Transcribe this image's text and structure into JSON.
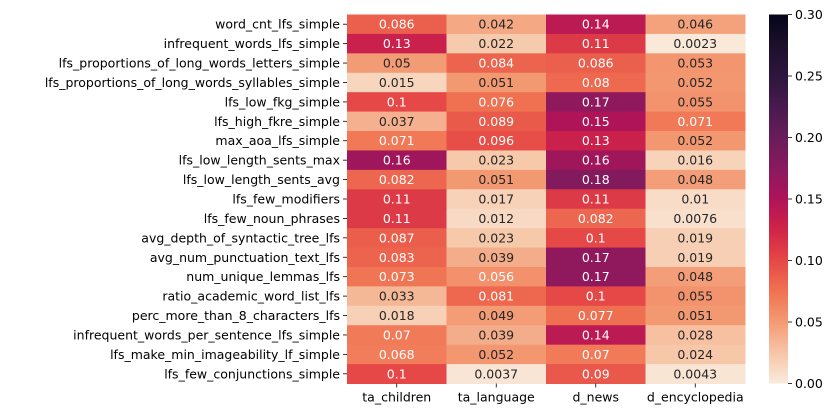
{
  "chart_data": {
    "type": "heatmap",
    "title": "",
    "xlabel": "",
    "ylabel": "",
    "columns": [
      "ta_children",
      "ta_language",
      "d_news",
      "d_encyclopedia"
    ],
    "rows": [
      "word_cnt_lfs_simple",
      "infrequent_words_lfs_simple",
      "lfs_proportions_of_long_words_letters_simple",
      "lfs_proportions_of_long_words_syllables_simple",
      "lfs_low_fkg_simple",
      "lfs_high_fkre_simple",
      "max_aoa_lfs_simple",
      "lfs_low_length_sents_max",
      "lfs_low_length_sents_avg",
      "lfs_few_modifiers",
      "lfs_few_noun_phrases",
      "avg_depth_of_syntactic_tree_lfs",
      "avg_num_punctuation_text_lfs",
      "num_unique_lemmas_lfs",
      "ratio_academic_word_list_lfs",
      "perc_more_than_8_characters_lfs",
      "infrequent_words_per_sentence_lfs_simple",
      "lfs_make_min_imageability_lf_simple",
      "lfs_few_conjunctions_simple"
    ],
    "values": [
      [
        0.086,
        0.042,
        0.14,
        0.046
      ],
      [
        0.13,
        0.022,
        0.11,
        0.0023
      ],
      [
        0.05,
        0.084,
        0.086,
        0.053
      ],
      [
        0.015,
        0.051,
        0.08,
        0.052
      ],
      [
        0.1,
        0.076,
        0.17,
        0.055
      ],
      [
        0.037,
        0.089,
        0.15,
        0.071
      ],
      [
        0.071,
        0.096,
        0.13,
        0.052
      ],
      [
        0.16,
        0.023,
        0.16,
        0.016
      ],
      [
        0.082,
        0.051,
        0.18,
        0.048
      ],
      [
        0.11,
        0.017,
        0.11,
        0.01
      ],
      [
        0.11,
        0.012,
        0.082,
        0.0076
      ],
      [
        0.087,
        0.023,
        0.1,
        0.019
      ],
      [
        0.083,
        0.039,
        0.17,
        0.019
      ],
      [
        0.073,
        0.056,
        0.17,
        0.048
      ],
      [
        0.033,
        0.081,
        0.1,
        0.055
      ],
      [
        0.018,
        0.049,
        0.077,
        0.051
      ],
      [
        0.07,
        0.039,
        0.14,
        0.028
      ],
      [
        0.068,
        0.052,
        0.07,
        0.024
      ],
      [
        0.1,
        0.0037,
        0.09,
        0.0043
      ]
    ],
    "colorbar": {
      "range": [
        0.0,
        0.3
      ],
      "ticks": [
        0.0,
        0.05,
        0.1,
        0.15,
        0.2,
        0.25,
        0.3
      ],
      "tick_labels": [
        "0.00",
        "0.05",
        "0.10",
        "0.15",
        "0.20",
        "0.25",
        "0.30"
      ],
      "colormap": "rocket_r"
    }
  }
}
